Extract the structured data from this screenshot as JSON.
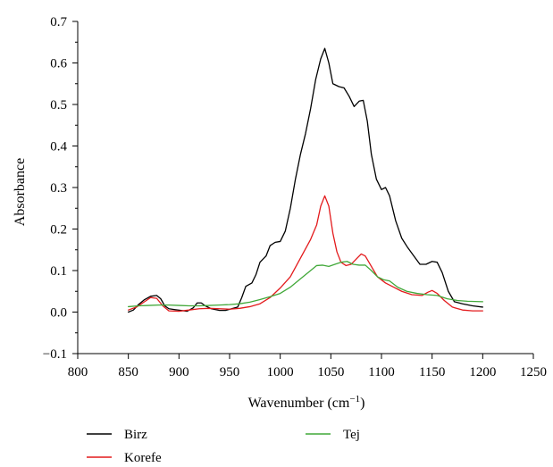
{
  "chart_data": {
    "type": "line",
    "title": "",
    "xlabel": "Wavenumber (cm",
    "xlabel_sup": "−1",
    "xlabel_close": ")",
    "ylabel": "Absorbance",
    "xlim": [
      800,
      1250
    ],
    "ylim": [
      -0.1,
      0.7
    ],
    "xticks": [
      800,
      850,
      900,
      950,
      1000,
      1050,
      1100,
      1150,
      1200,
      1250
    ],
    "xtick_labels": [
      "800",
      "850",
      "900",
      "950",
      "1000",
      "1050",
      "1100",
      "1150",
      "1200",
      "1250"
    ],
    "yticks": [
      -0.1,
      0.0,
      0.1,
      0.2,
      0.3,
      0.4,
      0.5,
      0.6,
      0.7
    ],
    "ytick_labels": [
      "−0.1",
      "0.0",
      "0.1",
      "0.2",
      "0.3",
      "0.4",
      "0.5",
      "0.6",
      "0.7"
    ],
    "grid": false,
    "legend_position": "bottom",
    "series": [
      {
        "name": "Birz",
        "color": "#000000",
        "points": [
          [
            850,
            0.0
          ],
          [
            855,
            0.005
          ],
          [
            860,
            0.018
          ],
          [
            866,
            0.03
          ],
          [
            872,
            0.038
          ],
          [
            878,
            0.04
          ],
          [
            882,
            0.032
          ],
          [
            886,
            0.015
          ],
          [
            890,
            0.008
          ],
          [
            896,
            0.006
          ],
          [
            902,
            0.004
          ],
          [
            908,
            0.002
          ],
          [
            914,
            0.01
          ],
          [
            918,
            0.022
          ],
          [
            922,
            0.022
          ],
          [
            926,
            0.015
          ],
          [
            932,
            0.008
          ],
          [
            940,
            0.004
          ],
          [
            946,
            0.004
          ],
          [
            952,
            0.008
          ],
          [
            958,
            0.012
          ],
          [
            962,
            0.035
          ],
          [
            966,
            0.062
          ],
          [
            972,
            0.07
          ],
          [
            976,
            0.09
          ],
          [
            980,
            0.12
          ],
          [
            986,
            0.135
          ],
          [
            990,
            0.16
          ],
          [
            995,
            0.168
          ],
          [
            1000,
            0.17
          ],
          [
            1005,
            0.195
          ],
          [
            1010,
            0.25
          ],
          [
            1015,
            0.32
          ],
          [
            1020,
            0.38
          ],
          [
            1025,
            0.43
          ],
          [
            1030,
            0.49
          ],
          [
            1035,
            0.56
          ],
          [
            1040,
            0.61
          ],
          [
            1044,
            0.635
          ],
          [
            1048,
            0.6
          ],
          [
            1052,
            0.55
          ],
          [
            1058,
            0.543
          ],
          [
            1063,
            0.54
          ],
          [
            1068,
            0.52
          ],
          [
            1073,
            0.495
          ],
          [
            1078,
            0.508
          ],
          [
            1082,
            0.51
          ],
          [
            1086,
            0.46
          ],
          [
            1090,
            0.38
          ],
          [
            1095,
            0.32
          ],
          [
            1100,
            0.295
          ],
          [
            1104,
            0.3
          ],
          [
            1108,
            0.28
          ],
          [
            1114,
            0.22
          ],
          [
            1120,
            0.178
          ],
          [
            1126,
            0.155
          ],
          [
            1132,
            0.135
          ],
          [
            1138,
            0.115
          ],
          [
            1144,
            0.115
          ],
          [
            1150,
            0.122
          ],
          [
            1155,
            0.12
          ],
          [
            1160,
            0.095
          ],
          [
            1166,
            0.05
          ],
          [
            1172,
            0.025
          ],
          [
            1180,
            0.02
          ],
          [
            1190,
            0.015
          ],
          [
            1200,
            0.012
          ]
        ]
      },
      {
        "name": "Korefe",
        "color": "#e31a1c",
        "points": [
          [
            850,
            0.005
          ],
          [
            858,
            0.012
          ],
          [
            866,
            0.025
          ],
          [
            872,
            0.035
          ],
          [
            878,
            0.033
          ],
          [
            884,
            0.015
          ],
          [
            890,
            0.003
          ],
          [
            900,
            0.002
          ],
          [
            910,
            0.005
          ],
          [
            920,
            0.008
          ],
          [
            930,
            0.009
          ],
          [
            940,
            0.008
          ],
          [
            950,
            0.007
          ],
          [
            960,
            0.009
          ],
          [
            970,
            0.013
          ],
          [
            980,
            0.02
          ],
          [
            990,
            0.035
          ],
          [
            1000,
            0.058
          ],
          [
            1010,
            0.085
          ],
          [
            1020,
            0.13
          ],
          [
            1030,
            0.175
          ],
          [
            1036,
            0.21
          ],
          [
            1040,
            0.255
          ],
          [
            1044,
            0.28
          ],
          [
            1048,
            0.255
          ],
          [
            1052,
            0.19
          ],
          [
            1056,
            0.145
          ],
          [
            1060,
            0.12
          ],
          [
            1065,
            0.112
          ],
          [
            1070,
            0.115
          ],
          [
            1076,
            0.13
          ],
          [
            1080,
            0.14
          ],
          [
            1084,
            0.135
          ],
          [
            1090,
            0.11
          ],
          [
            1096,
            0.085
          ],
          [
            1104,
            0.07
          ],
          [
            1112,
            0.06
          ],
          [
            1120,
            0.05
          ],
          [
            1130,
            0.042
          ],
          [
            1140,
            0.04
          ],
          [
            1146,
            0.048
          ],
          [
            1150,
            0.052
          ],
          [
            1155,
            0.045
          ],
          [
            1162,
            0.028
          ],
          [
            1170,
            0.012
          ],
          [
            1180,
            0.005
          ],
          [
            1190,
            0.003
          ],
          [
            1200,
            0.003
          ]
        ]
      },
      {
        "name": "Tej",
        "color": "#41a839",
        "points": [
          [
            850,
            0.013
          ],
          [
            860,
            0.015
          ],
          [
            870,
            0.016
          ],
          [
            880,
            0.017
          ],
          [
            890,
            0.017
          ],
          [
            900,
            0.016
          ],
          [
            910,
            0.015
          ],
          [
            920,
            0.015
          ],
          [
            930,
            0.016
          ],
          [
            940,
            0.017
          ],
          [
            950,
            0.018
          ],
          [
            960,
            0.02
          ],
          [
            970,
            0.024
          ],
          [
            980,
            0.03
          ],
          [
            990,
            0.037
          ],
          [
            1000,
            0.045
          ],
          [
            1010,
            0.06
          ],
          [
            1020,
            0.08
          ],
          [
            1030,
            0.1
          ],
          [
            1036,
            0.112
          ],
          [
            1042,
            0.113
          ],
          [
            1048,
            0.11
          ],
          [
            1054,
            0.115
          ],
          [
            1060,
            0.12
          ],
          [
            1066,
            0.122
          ],
          [
            1072,
            0.115
          ],
          [
            1078,
            0.113
          ],
          [
            1084,
            0.113
          ],
          [
            1090,
            0.1
          ],
          [
            1096,
            0.085
          ],
          [
            1102,
            0.078
          ],
          [
            1108,
            0.075
          ],
          [
            1116,
            0.06
          ],
          [
            1125,
            0.05
          ],
          [
            1135,
            0.045
          ],
          [
            1145,
            0.042
          ],
          [
            1155,
            0.04
          ],
          [
            1165,
            0.032
          ],
          [
            1175,
            0.028
          ],
          [
            1185,
            0.026
          ],
          [
            1200,
            0.025
          ]
        ]
      }
    ]
  }
}
